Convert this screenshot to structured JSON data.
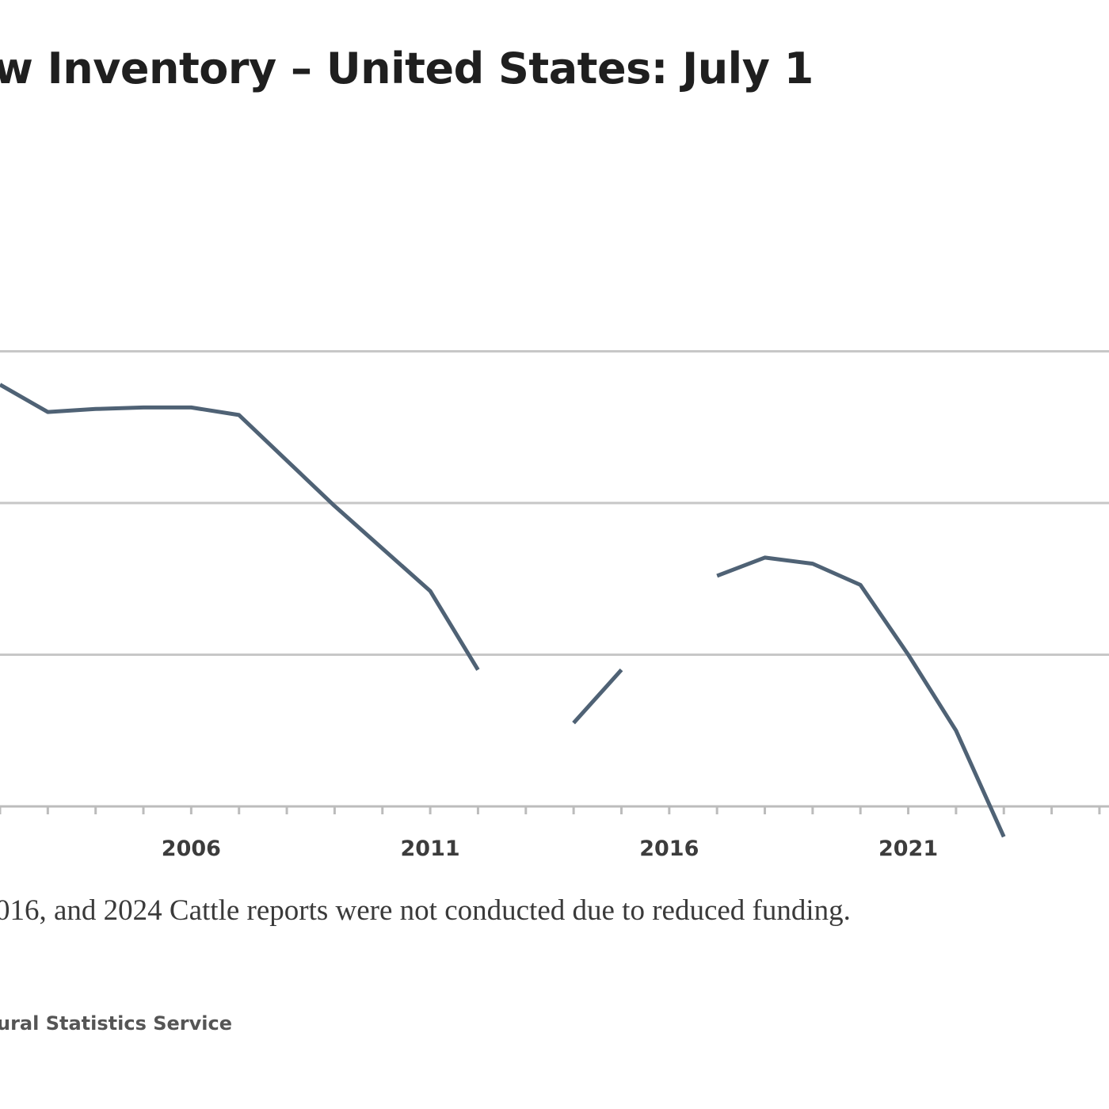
{
  "chart_data": {
    "type": "line",
    "title": "w Inventory – United States: July 1",
    "xlabel": "",
    "ylabel": "",
    "x_tick_labels": [
      "2006",
      "2011",
      "2016",
      "2021"
    ],
    "xlim": [
      2002,
      2025.2
    ],
    "ylim": [
      0,
      4
    ],
    "grid": "horizontal",
    "legend": "none",
    "series": [
      {
        "color": "#4f6275",
        "points": [
          [
            2002.0,
            2.78
          ],
          [
            2003.0,
            2.6
          ],
          [
            2004.0,
            2.62
          ],
          [
            2005.0,
            2.63
          ],
          [
            2006.0,
            2.63
          ],
          [
            2007.0,
            2.58
          ],
          [
            2008.0,
            2.28
          ],
          [
            2009.0,
            1.98
          ],
          [
            2010.0,
            1.7
          ],
          [
            2011.0,
            1.42
          ],
          [
            2012.0,
            0.9
          ],
          [
            null,
            null
          ],
          [
            2014.0,
            0.55
          ],
          [
            2015.0,
            0.9
          ],
          [
            null,
            null
          ],
          [
            2017.0,
            1.52
          ],
          [
            2018.0,
            1.64
          ],
          [
            2019.0,
            1.6
          ],
          [
            2020.0,
            1.46
          ],
          [
            2021.0,
            1.0
          ],
          [
            2022.0,
            0.5
          ],
          [
            2023.0,
            -0.2
          ]
        ]
      }
    ]
  },
  "footnote": "016, and 2024 Cattle reports were not conducted due to reduced funding.",
  "source": "ural Statistics Service"
}
